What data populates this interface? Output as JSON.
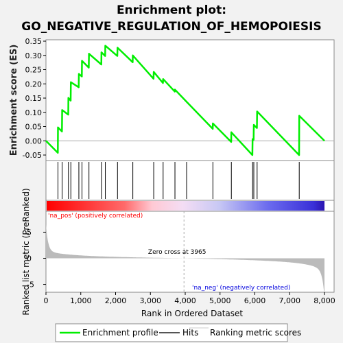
{
  "title_line1": "Enrichment plot:",
  "title_line2": "GO_NEGATIVE_REGULATION_OF_HEMOPOIESIS",
  "chart_data": {
    "type": "line",
    "x_range": [
      0,
      8000
    ],
    "es_ylim": [
      -0.05,
      0.35
    ],
    "es_ticks": [
      "0.35",
      "0.30",
      "0.25",
      "0.20",
      "0.15",
      "0.10",
      "0.05",
      "0.00",
      "-0.05"
    ],
    "es_tick_values": [
      0.35,
      0.3,
      0.25,
      0.2,
      0.15,
      0.1,
      0.05,
      0.0,
      -0.05
    ],
    "es_ylabel": "Enrichment score (ES)",
    "enrichment_profile": [
      [
        0,
        0.0
      ],
      [
        340,
        -0.042
      ],
      [
        345,
        0.047
      ],
      [
        460,
        0.033
      ],
      [
        465,
        0.108
      ],
      [
        640,
        0.092
      ],
      [
        645,
        0.151
      ],
      [
        710,
        0.141
      ],
      [
        715,
        0.206
      ],
      [
        940,
        0.188
      ],
      [
        945,
        0.235
      ],
      [
        1030,
        0.226
      ],
      [
        1035,
        0.281
      ],
      [
        1230,
        0.257
      ],
      [
        1235,
        0.306
      ],
      [
        1590,
        0.268
      ],
      [
        1595,
        0.311
      ],
      [
        1700,
        0.298
      ],
      [
        1705,
        0.334
      ],
      [
        2050,
        0.298
      ],
      [
        2055,
        0.327
      ],
      [
        2490,
        0.276
      ],
      [
        2495,
        0.3
      ],
      [
        3090,
        0.218
      ],
      [
        3095,
        0.242
      ],
      [
        3360,
        0.203
      ],
      [
        3365,
        0.217
      ],
      [
        3700,
        0.173
      ],
      [
        3705,
        0.18
      ],
      [
        4040,
        0.137
      ],
      [
        4790,
        0.042
      ],
      [
        4795,
        0.061
      ],
      [
        5320,
        -0.004
      ],
      [
        5325,
        0.03
      ],
      [
        5930,
        -0.05
      ],
      [
        5935,
        0.006
      ],
      [
        5965,
        0.004
      ],
      [
        5970,
        0.056
      ],
      [
        6060,
        0.045
      ],
      [
        6065,
        0.103
      ],
      [
        7270,
        -0.05
      ],
      [
        7275,
        0.088
      ],
      [
        8000,
        0.0
      ]
    ],
    "hits": [
      345,
      465,
      645,
      715,
      945,
      1035,
      1235,
      1595,
      1705,
      2055,
      2495,
      3095,
      3365,
      3705,
      4040,
      4795,
      5325,
      5935,
      5970,
      6065,
      7275
    ],
    "rank_ylim": [
      -6.5,
      9
    ],
    "rank_ticks": [
      "5",
      "0",
      "-5"
    ],
    "rank_tick_values": [
      5,
      0,
      -5
    ],
    "rank_ylabel": "Ranked list metric (PreRanked)",
    "zero_cross": 3965,
    "zero_cross_label": "Zero cross at 3965",
    "pos_label": "'na_pos' (positively correlated)",
    "neg_label": "'na_neg' (negatively correlated)",
    "x_ticks": [
      "0",
      "1,000",
      "2,000",
      "3,000",
      "4,000",
      "5,000",
      "6,000",
      "7,000",
      "8,000"
    ],
    "x_tick_values": [
      0,
      1000,
      2000,
      3000,
      4000,
      5000,
      6000,
      7000,
      8000
    ],
    "xlabel": "Rank in Ordered Dataset",
    "legend": [
      "Enrichment profile",
      "Hits",
      "Ranking metric scores"
    ],
    "colors": {
      "profile": "#00ee00",
      "hits": "#000000",
      "metric": "#bbbbbb",
      "pos_label": "#ff0000",
      "neg_label": "#0000dd"
    }
  }
}
